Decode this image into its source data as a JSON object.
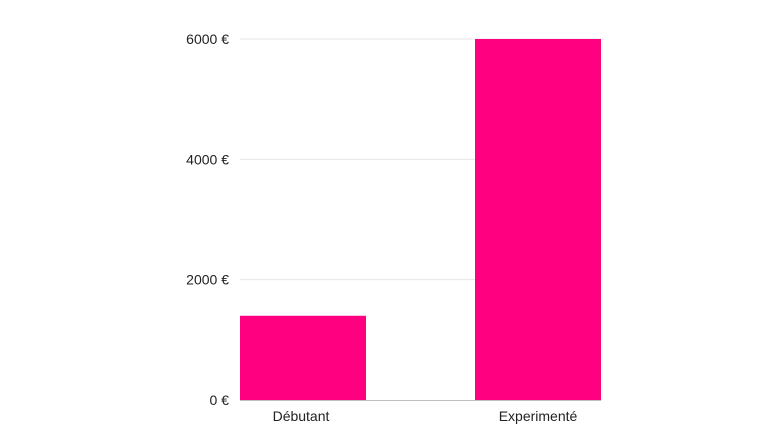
{
  "chart_data": {
    "type": "bar",
    "title": "",
    "xlabel": "",
    "ylabel": "",
    "categories": [
      "Débutant",
      "Experimenté"
    ],
    "values": [
      1400,
      6000
    ],
    "ylim": [
      0,
      6000
    ],
    "yticks": [
      {
        "value": 0,
        "label": "0 €"
      },
      {
        "value": 2000,
        "label": "2000 €"
      },
      {
        "value": 4000,
        "label": "4000 €"
      },
      {
        "value": 6000,
        "label": "6000 €"
      }
    ],
    "grid": true,
    "legend": "none",
    "bar_color": "#ff0080",
    "grid_color": "#e6e6e6",
    "axis_color": "#bdbdbd"
  }
}
